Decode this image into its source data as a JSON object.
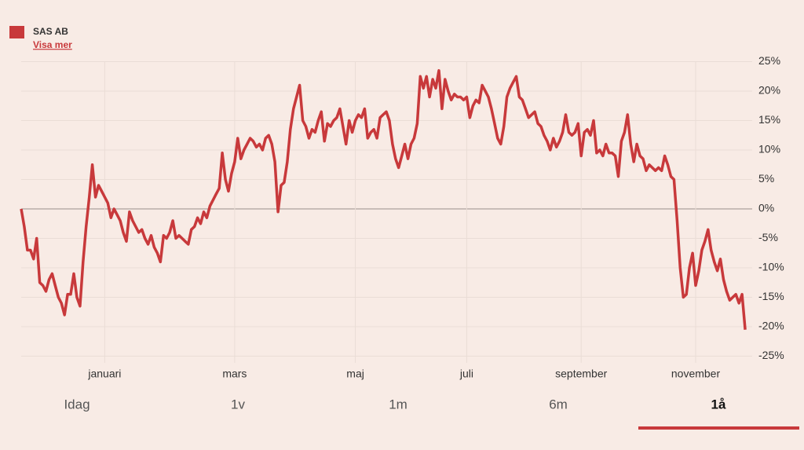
{
  "chart_data": {
    "type": "line",
    "series": [
      {
        "name": "SAS AB",
        "color": "#c8393b",
        "values": [
          0,
          -3,
          -7,
          -7,
          -8.5,
          -5,
          -12.5,
          -13,
          -14,
          -12,
          -11,
          -13,
          -15,
          -16,
          -18,
          -14.5,
          -14.5,
          -11,
          -15,
          -16.5,
          -9,
          -3,
          2,
          7.5,
          2,
          4,
          3,
          2,
          1,
          -1.5,
          0,
          -1,
          -2,
          -4,
          -5.5,
          -0.5,
          -2,
          -3,
          -4,
          -3.5,
          -5,
          -6,
          -4.5,
          -6.5,
          -7.5,
          -9,
          -4.5,
          -5,
          -4,
          -2,
          -5,
          -4.5,
          -5,
          -5.5,
          -6,
          -3.5,
          -3,
          -1.5,
          -2.5,
          -0.5,
          -1.5,
          0.5,
          1.5,
          2.5,
          3.5,
          9.5,
          5,
          3,
          6,
          8,
          12,
          8.5,
          10,
          11,
          12,
          11.5,
          10.5,
          11,
          10,
          12,
          12.5,
          11,
          8,
          -0.5,
          4,
          4.5,
          8,
          13.5,
          17,
          19,
          21,
          15,
          14,
          12,
          13.5,
          13,
          15,
          16.5,
          11.5,
          14.5,
          14,
          15,
          15.5,
          17,
          14,
          11,
          15,
          13,
          15,
          16,
          15.5,
          17,
          12,
          13,
          13.5,
          12,
          15.5,
          16,
          16.5,
          15,
          11,
          8.5,
          7,
          9,
          11,
          8.5,
          11,
          12,
          14.5,
          22.5,
          20.5,
          22.5,
          19,
          22,
          20.5,
          23.5,
          17,
          22,
          20,
          18.5,
          19.5,
          19,
          19,
          18.5,
          19,
          15.5,
          17.5,
          18.5,
          18,
          21,
          20,
          19,
          17,
          14.5,
          12,
          11,
          14,
          19,
          20.5,
          21.5,
          22.5,
          19,
          18.5,
          17,
          15.5,
          16,
          16.5,
          14.5,
          14,
          12.5,
          11.5,
          10,
          12,
          10.5,
          11.5,
          13,
          16,
          13,
          12.5,
          13,
          14.5,
          9,
          13,
          13.5,
          12.5,
          15,
          9.5,
          10,
          9,
          11,
          9.5,
          9.5,
          9,
          5.5,
          11.5,
          13,
          16,
          11,
          8,
          11,
          9,
          8.5,
          6.5,
          7.5,
          7,
          6.5,
          7,
          6.5,
          9,
          7.5,
          5.5,
          5,
          -2,
          -10,
          -15,
          -14.5,
          -10,
          -7.5,
          -13,
          -10.5,
          -7,
          -5.5,
          -3.5,
          -7,
          -9,
          -10.5,
          -8.5,
          -12,
          -14,
          -15.5,
          -15,
          -14.5,
          -16,
          -14.5,
          -20.5
        ]
      }
    ],
    "xlim": [
      0,
      235
    ],
    "xticks": [
      {
        "value": 27,
        "label": "januari"
      },
      {
        "value": 69,
        "label": "mars"
      },
      {
        "value": 108,
        "label": "maj"
      },
      {
        "value": 144,
        "label": "juli"
      },
      {
        "value": 181,
        "label": "september"
      },
      {
        "value": 218,
        "label": "november"
      }
    ],
    "ylim": [
      -25,
      25
    ],
    "yticks": [
      {
        "value": 25,
        "label": "25%"
      },
      {
        "value": 20,
        "label": "20%"
      },
      {
        "value": 15,
        "label": "15%"
      },
      {
        "value": 10,
        "label": "10%"
      },
      {
        "value": 5,
        "label": "5%"
      },
      {
        "value": 0,
        "label": "0%"
      },
      {
        "value": -5,
        "label": "-5%"
      },
      {
        "value": -10,
        "label": "-10%"
      },
      {
        "value": -15,
        "label": "-15%"
      },
      {
        "value": -20,
        "label": "-20%"
      },
      {
        "value": -25,
        "label": "-25%"
      }
    ],
    "grid": true,
    "link": "Visa mer",
    "ranges": [
      "Idag",
      "1v",
      "1m",
      "6m",
      "1å"
    ],
    "active_range": 4
  }
}
